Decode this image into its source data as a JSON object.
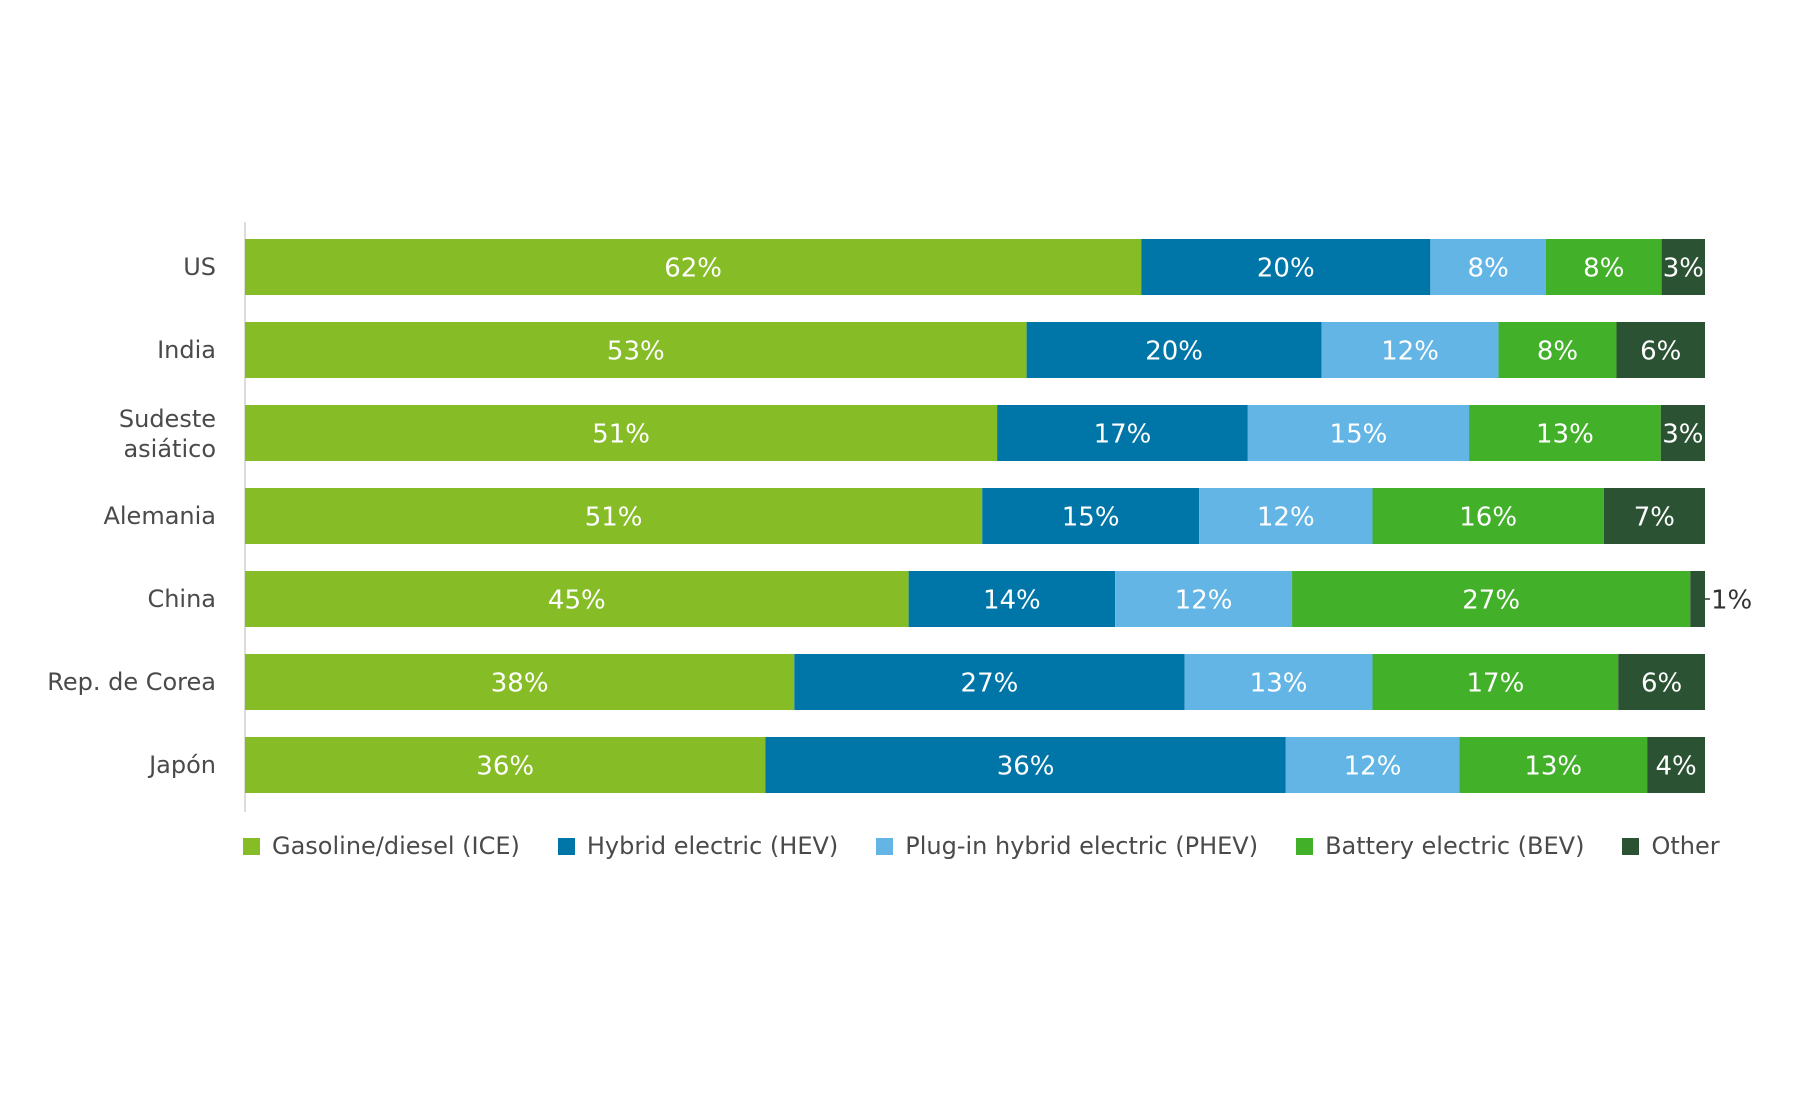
{
  "chart_data": {
    "type": "bar",
    "orientation": "horizontal",
    "stacked": true,
    "categories": [
      [
        "US"
      ],
      [
        "India"
      ],
      [
        "Sudeste",
        "asiático"
      ],
      [
        "Alemania"
      ],
      [
        "China"
      ],
      [
        "Rep. de Corea"
      ],
      [
        "Japón"
      ]
    ],
    "series": [
      {
        "name": "Gasoline/diesel (ICE)",
        "color": "#86bc25",
        "values": [
          62,
          53,
          51,
          51,
          45,
          38,
          36
        ]
      },
      {
        "name": "Hybrid electric (HEV)",
        "color": "#0076a8",
        "values": [
          20,
          20,
          17,
          15,
          14,
          27,
          36
        ]
      },
      {
        "name": "Plug-in hybrid electric (PHEV)",
        "color": "#62b5e5",
        "values": [
          8,
          12,
          15,
          12,
          12,
          13,
          12
        ]
      },
      {
        "name": "Battery electric (BEV)",
        "color": "#43b02a",
        "values": [
          8,
          8,
          13,
          16,
          27,
          17,
          13
        ]
      },
      {
        "name": "Other",
        "color": "#2c5234",
        "values": [
          3,
          6,
          3,
          7,
          1,
          6,
          4
        ]
      }
    ],
    "value_suffix": "%",
    "xlim": [
      0,
      100
    ],
    "legend_position": "bottom",
    "grid": false
  }
}
